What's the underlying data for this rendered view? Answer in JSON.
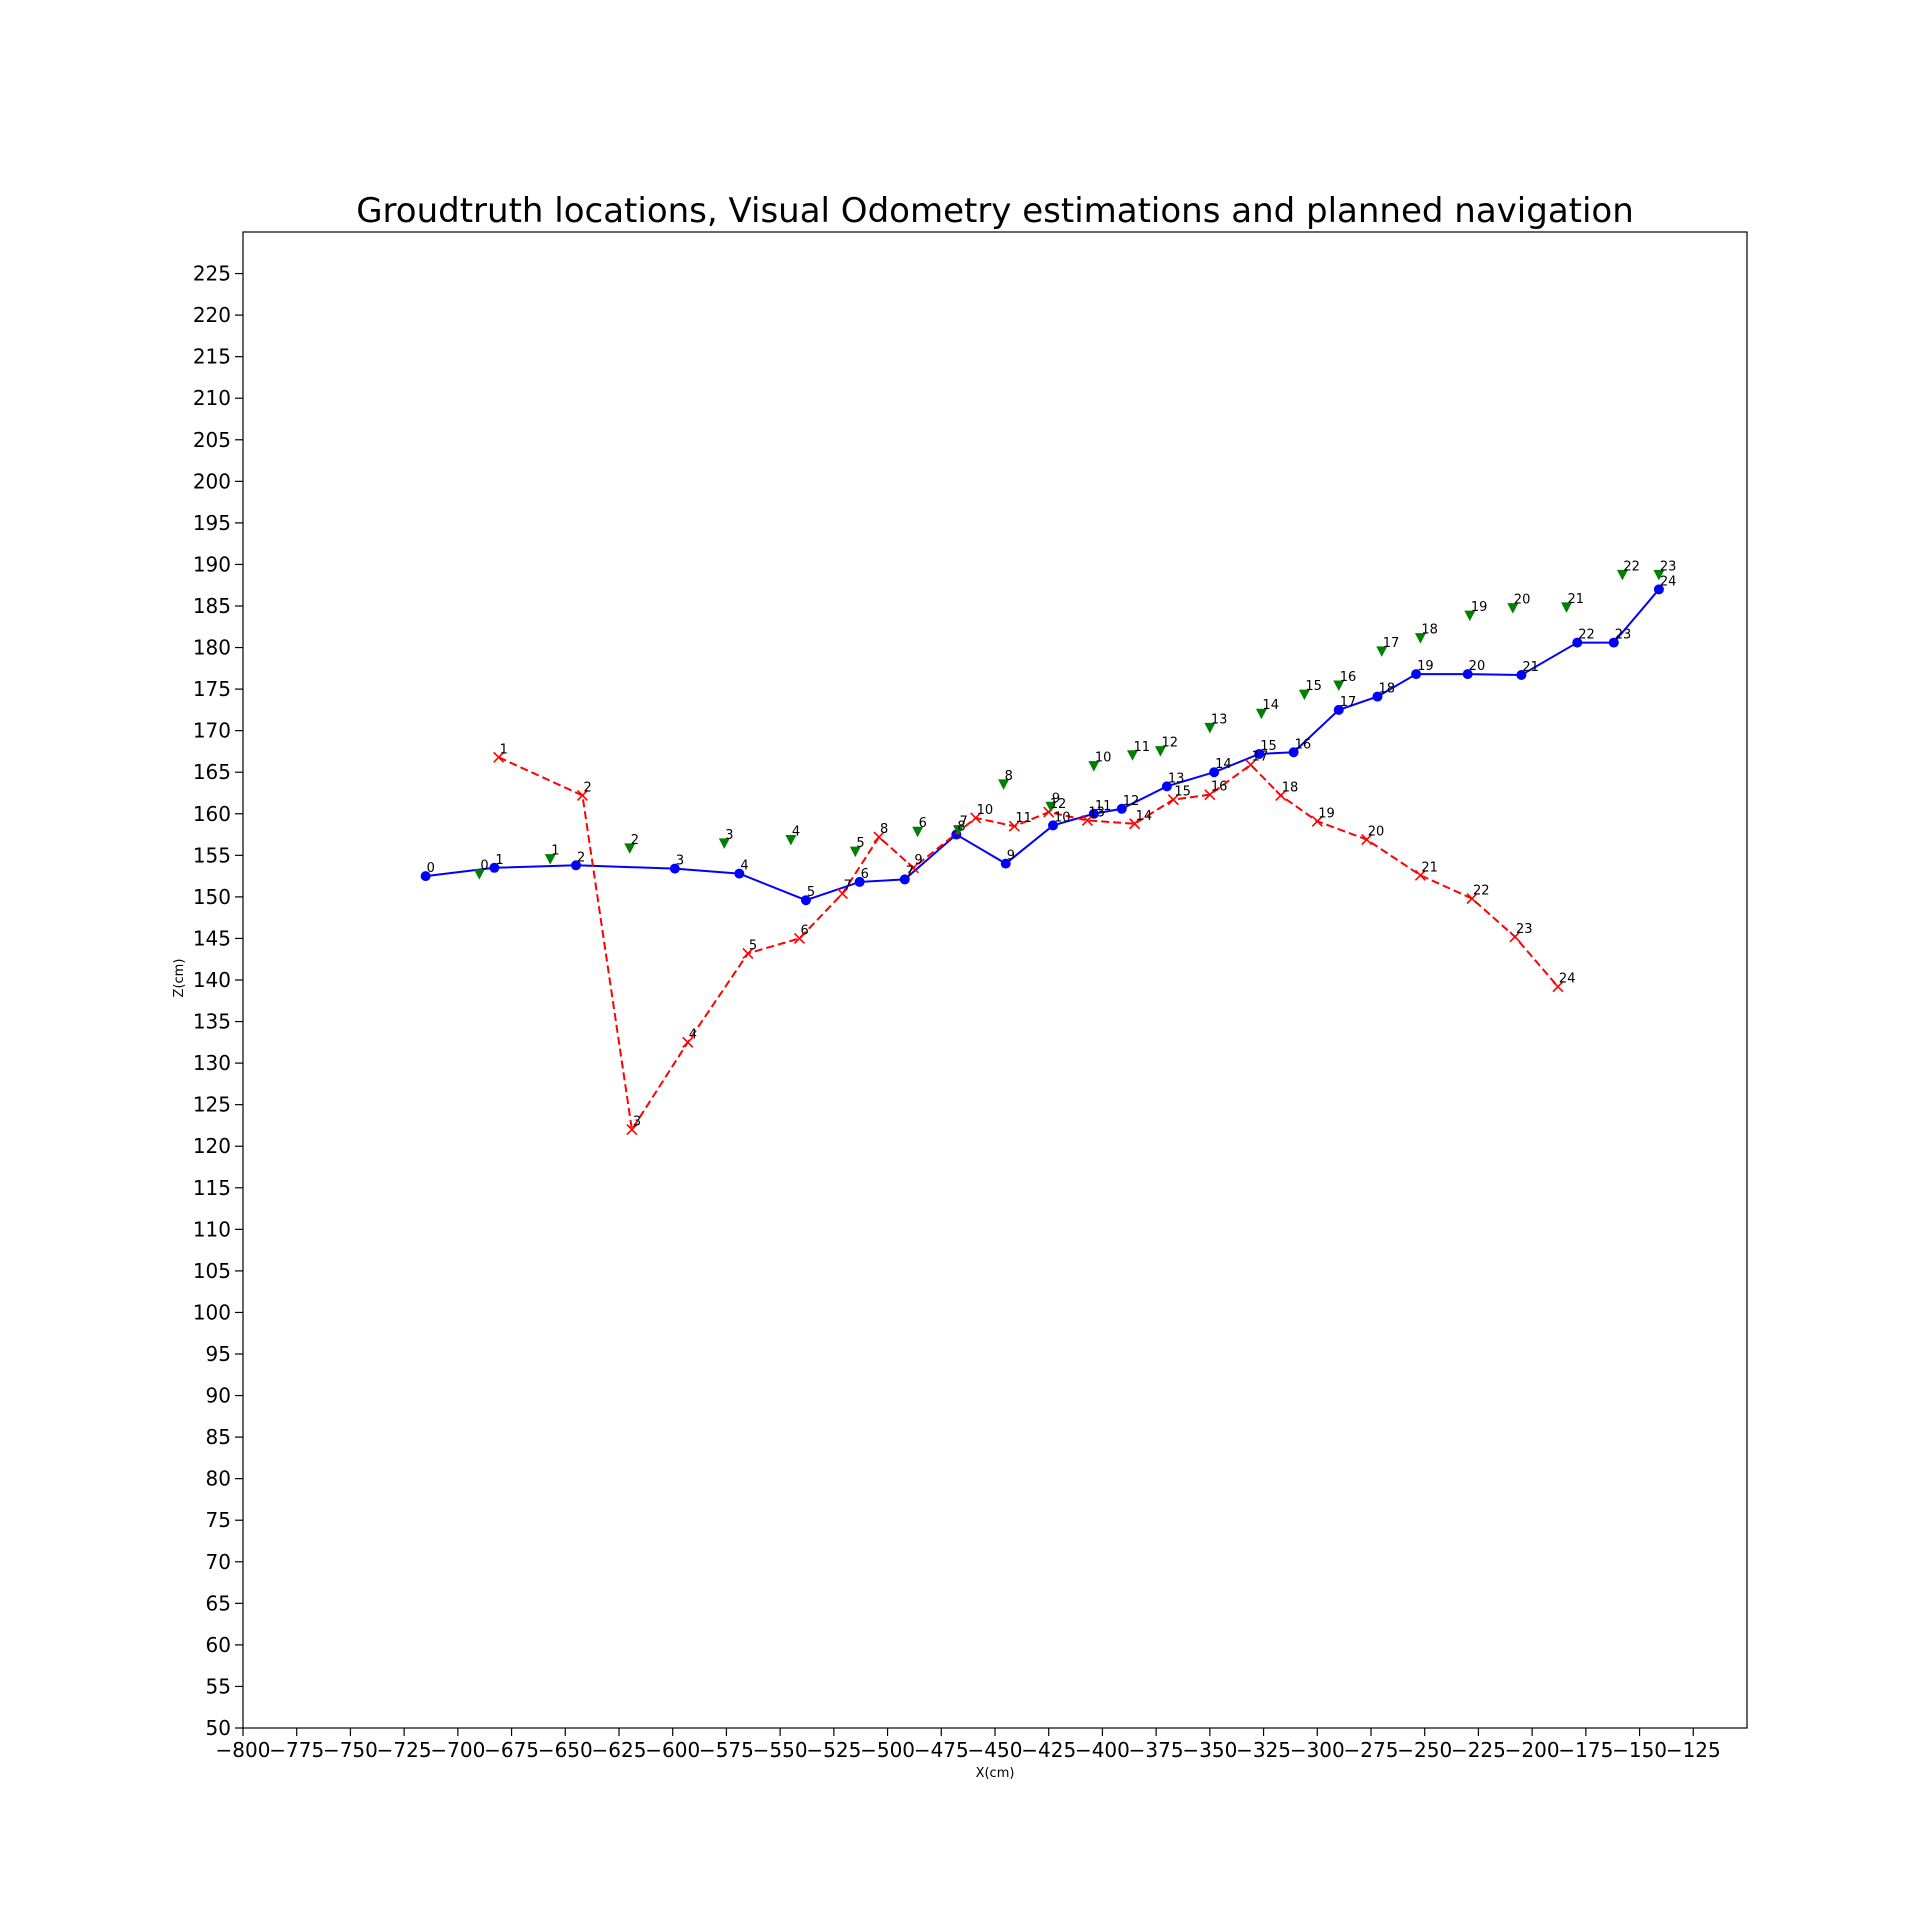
{
  "chart_data": {
    "type": "line",
    "title": "Groudtruth locations, Visual Odometry estimations and planned navigation",
    "xlabel": "X(cm)",
    "ylabel": "Z(cm)",
    "xlim": [
      -800,
      -100
    ],
    "ylim": [
      50,
      230
    ],
    "xticks": [
      -800,
      -775,
      -750,
      -725,
      -700,
      -675,
      -650,
      -625,
      -600,
      -575,
      -550,
      -525,
      -500,
      -475,
      -450,
      -425,
      -400,
      -375,
      -350,
      -325,
      -300,
      -275,
      -250,
      -225,
      -200,
      -175,
      -150,
      -125
    ],
    "yticks": [
      50,
      55,
      60,
      65,
      70,
      75,
      80,
      85,
      90,
      95,
      100,
      105,
      110,
      115,
      120,
      125,
      130,
      135,
      140,
      145,
      150,
      155,
      160,
      165,
      170,
      175,
      180,
      185,
      190,
      195,
      200,
      205,
      210,
      215,
      220,
      225
    ],
    "grid": false,
    "series": [
      {
        "style": "solid",
        "marker": "circle",
        "color": "#0000ff",
        "labels": [
          "0",
          "1",
          "2",
          "3",
          "4",
          "5",
          "6",
          "7",
          "8",
          "9",
          "10",
          "11",
          "12",
          "13",
          "14",
          "15",
          "16",
          "17",
          "18",
          "19",
          "20",
          "21",
          "22",
          "23",
          "24"
        ],
        "x": [
          -715,
          -683,
          -645,
          -599,
          -569,
          -538,
          -513,
          -492,
          -468,
          -445,
          -423,
          -404,
          -391,
          -370,
          -348,
          -327,
          -311,
          -290,
          -272,
          -254,
          -230,
          -205,
          -179,
          -162,
          -141
        ],
        "y": [
          152.5,
          153.5,
          153.8,
          153.4,
          152.8,
          149.6,
          151.8,
          152.1,
          157.5,
          154.0,
          158.6,
          160.0,
          160.6,
          163.3,
          165.0,
          167.2,
          167.4,
          172.5,
          174.1,
          176.8,
          176.8,
          176.7,
          180.6,
          180.6,
          187.0
        ]
      },
      {
        "style": "dashed",
        "marker": "x",
        "color": "#ff0000",
        "labels": [
          "1",
          "2",
          "3",
          "4",
          "5",
          "6",
          "7",
          "8",
          "9",
          "10",
          "11",
          "12",
          "13",
          "14",
          "15",
          "16",
          "17",
          "18",
          "19",
          "20",
          "21",
          "22",
          "23",
          "24"
        ],
        "x": [
          -681,
          -642,
          -619,
          -593,
          -565,
          -541,
          -521,
          -504,
          -488,
          -459,
          -441,
          -425,
          -407,
          -385,
          -367,
          -350,
          -331,
          -317,
          -300,
          -277,
          -252,
          -228,
          -208,
          -188
        ],
        "y": [
          166.8,
          162.2,
          122.0,
          132.5,
          143.2,
          145.0,
          150.4,
          157.2,
          153.5,
          159.5,
          158.5,
          160.2,
          159.2,
          158.8,
          161.7,
          162.3,
          165.9,
          162.2,
          159.1,
          156.9,
          152.6,
          149.8,
          145.2,
          139.2
        ]
      },
      {
        "style": "none",
        "marker": "triangle-down",
        "color": "#008000",
        "labels": [
          "0",
          "1",
          "2",
          "3",
          "4",
          "5",
          "6",
          "7",
          "8",
          "9",
          "10",
          "11",
          "12",
          "13",
          "14",
          "15",
          "16",
          "17",
          "18",
          "19",
          "20",
          "21",
          "22",
          "23"
        ],
        "x": [
          -690,
          -657,
          -620,
          -576,
          -545,
          -515,
          -486,
          -467,
          -446,
          -424,
          -404,
          -386,
          -373,
          -350,
          -326,
          -306,
          -290,
          -270,
          -252,
          -229,
          -209,
          -184,
          -158,
          -141
        ],
        "y": [
          152.8,
          154.6,
          155.9,
          156.5,
          156.9,
          155.5,
          157.9,
          158.1,
          163.6,
          160.9,
          165.8,
          167.1,
          167.6,
          170.4,
          172.1,
          174.4,
          175.5,
          179.6,
          181.2,
          183.9,
          184.8,
          184.9,
          188.8,
          188.8
        ]
      }
    ]
  }
}
